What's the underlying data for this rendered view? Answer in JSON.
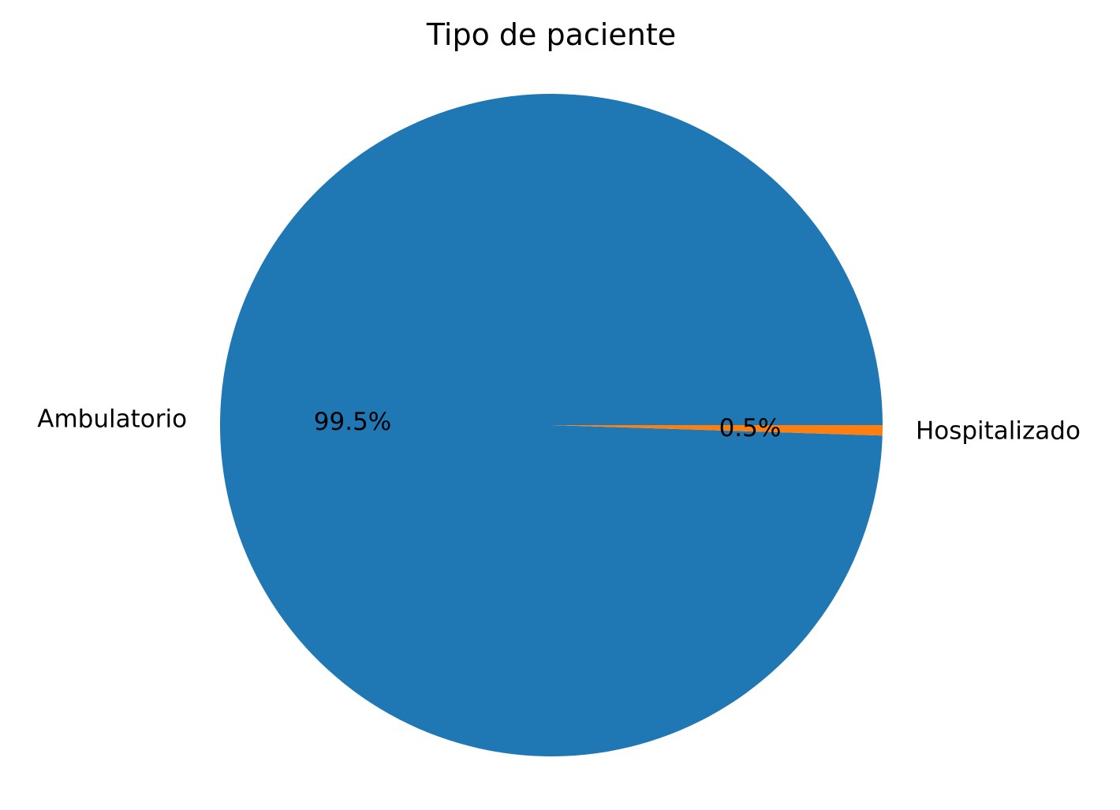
{
  "chart_data": {
    "type": "pie",
    "title": "Tipo de paciente",
    "start_angle_deg": 0,
    "direction": "counterclockwise",
    "slices": [
      {
        "label": "Ambulatorio",
        "value": 99.5,
        "pct_label": "99.5%",
        "color": "#1f77b4"
      },
      {
        "label": "Hospitalizado",
        "value": 0.5,
        "pct_label": "0.5%",
        "color": "#ff7f0e"
      }
    ]
  }
}
